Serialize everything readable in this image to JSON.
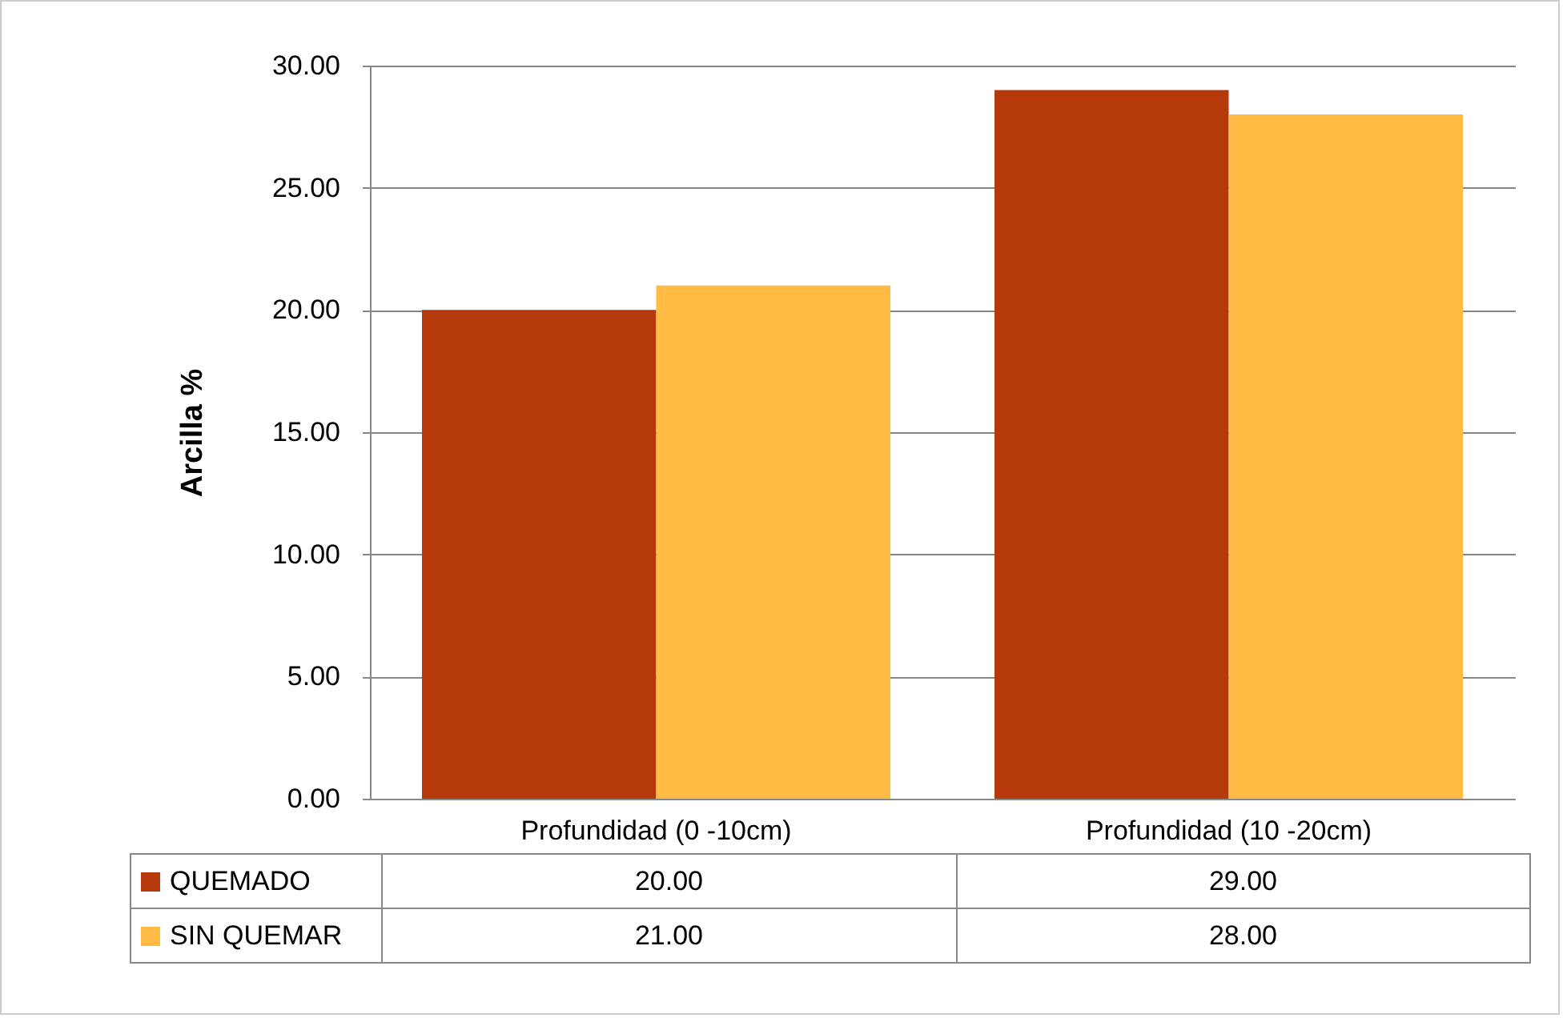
{
  "chart_data": {
    "type": "bar",
    "ylabel": "Arcilla %",
    "categories": [
      "Profundidad (0 -10cm)",
      "Profundidad (10 -20cm)"
    ],
    "series": [
      {
        "name": "QUEMADO",
        "color": "#b5390a",
        "values": [
          20.0,
          29.0
        ],
        "value_labels": [
          "20.00",
          "29.00"
        ]
      },
      {
        "name": "SIN QUEMAR",
        "color": "#ffbb44",
        "values": [
          21.0,
          28.0
        ],
        "value_labels": [
          "21.00",
          "28.00"
        ]
      }
    ],
    "ylim": [
      0,
      30
    ],
    "yticks": [
      {
        "value": 0,
        "label": "0.00"
      },
      {
        "value": 5,
        "label": "5.00"
      },
      {
        "value": 10,
        "label": "10.00"
      },
      {
        "value": 15,
        "label": "15.00"
      },
      {
        "value": 20,
        "label": "20.00"
      },
      {
        "value": 25,
        "label": "25.00"
      },
      {
        "value": 30,
        "label": "30.00"
      }
    ],
    "grid": "y",
    "legend": "bottom left"
  }
}
